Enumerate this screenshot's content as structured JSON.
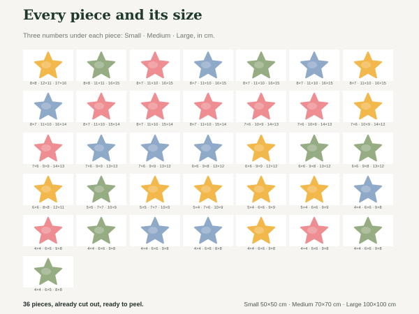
{
  "header": {
    "title": "Every piece and its size",
    "subtitle": "Three numbers under each piece: Small · Medium · Large, in cm."
  },
  "colors": {
    "yellow": "#f2b84b",
    "green": "#96ad84",
    "pink": "#ee8e93",
    "blue": "#8fa9c8"
  },
  "pieces": [
    {
      "icon": "star-icon",
      "color": "yellow",
      "sizes": "8×8 · 12×11 · 17×16"
    },
    {
      "icon": "star-icon",
      "color": "green",
      "sizes": "8×8 · 11×11 · 16×15"
    },
    {
      "icon": "star-icon",
      "color": "pink",
      "sizes": "8×7 · 11×10 · 16×15"
    },
    {
      "icon": "star-icon",
      "color": "blue",
      "sizes": "8×7 · 11×10 · 16×15"
    },
    {
      "icon": "star-icon",
      "color": "green",
      "sizes": "8×7 · 11×10 · 16×15"
    },
    {
      "icon": "star-icon",
      "color": "blue",
      "sizes": "8×7 · 11×10 · 16×15"
    },
    {
      "icon": "star-icon",
      "color": "yellow",
      "sizes": "8×7 · 11×10 · 16×15"
    },
    {
      "icon": "star-icon",
      "color": "blue",
      "sizes": "8×7 · 11×10 · 16×14"
    },
    {
      "icon": "star-icon",
      "color": "pink",
      "sizes": "8×7 · 11×10 · 15×14"
    },
    {
      "icon": "star-icon",
      "color": "pink",
      "sizes": "8×7 · 11×10 · 15×14"
    },
    {
      "icon": "star-icon",
      "color": "pink",
      "sizes": "8×7 · 11×10 · 15×14"
    },
    {
      "icon": "star-icon",
      "color": "pink",
      "sizes": "7×6 · 10×9 · 14×13"
    },
    {
      "icon": "star-icon",
      "color": "pink",
      "sizes": "7×6 · 10×9 · 14×13"
    },
    {
      "icon": "star-icon",
      "color": "yellow",
      "sizes": "7×6 · 10×9 · 14×12"
    },
    {
      "icon": "star-icon",
      "color": "pink",
      "sizes": "7×6 · 9×9 · 14×13"
    },
    {
      "icon": "star-icon",
      "color": "blue",
      "sizes": "7×6 · 9×9 · 13×13"
    },
    {
      "icon": "star-icon",
      "color": "blue",
      "sizes": "7×6 · 9×9 · 13×12"
    },
    {
      "icon": "star-icon",
      "color": "blue",
      "sizes": "6×6 · 9×8 · 13×12"
    },
    {
      "icon": "star-icon",
      "color": "yellow",
      "sizes": "6×6 · 9×9 · 12×12"
    },
    {
      "icon": "star-icon",
      "color": "green",
      "sizes": "6×6 · 9×8 · 13×12"
    },
    {
      "icon": "star-icon",
      "color": "green",
      "sizes": "6×6 · 9×8 · 13×12"
    },
    {
      "icon": "star-icon",
      "color": "yellow",
      "sizes": "6×6 · 8×8 · 12×11"
    },
    {
      "icon": "star-icon",
      "color": "green",
      "sizes": "5×5 · 7×7 · 10×9"
    },
    {
      "icon": "star-icon",
      "color": "yellow",
      "sizes": "5×5 · 7×7 · 10×9"
    },
    {
      "icon": "star-icon",
      "color": "yellow",
      "sizes": "5×4 · 7×6 · 10×9"
    },
    {
      "icon": "star-icon",
      "color": "yellow",
      "sizes": "5×4 · 6×6 · 9×9"
    },
    {
      "icon": "star-icon",
      "color": "yellow",
      "sizes": "5×4 · 6×6 · 9×9"
    },
    {
      "icon": "star-icon",
      "color": "blue",
      "sizes": "4×4 · 6×6 · 9×8"
    },
    {
      "icon": "star-icon",
      "color": "pink",
      "sizes": "4×4 · 6×6 · 9×8"
    },
    {
      "icon": "star-icon",
      "color": "green",
      "sizes": "4×4 · 6×6 · 9×8"
    },
    {
      "icon": "star-icon",
      "color": "blue",
      "sizes": "4×4 · 6×6 · 9×8"
    },
    {
      "icon": "star-icon",
      "color": "blue",
      "sizes": "4×4 · 6×6 · 8×8"
    },
    {
      "icon": "star-icon",
      "color": "yellow",
      "sizes": "4×4 · 6×6 · 9×8"
    },
    {
      "icon": "star-icon",
      "color": "pink",
      "sizes": "4×4 · 6×6 · 9×8"
    },
    {
      "icon": "star-icon",
      "color": "green",
      "sizes": "4×4 · 6×6 · 9×8"
    },
    {
      "icon": "star-icon",
      "color": "green",
      "sizes": "4×4 · 6×5 · 8×8"
    }
  ],
  "footer": {
    "summary": "36 pieces, already cut out, ready to peel.",
    "formats": "Small 50×50 cm  ·  Medium 70×70 cm  ·  Large 100×100 cm"
  }
}
